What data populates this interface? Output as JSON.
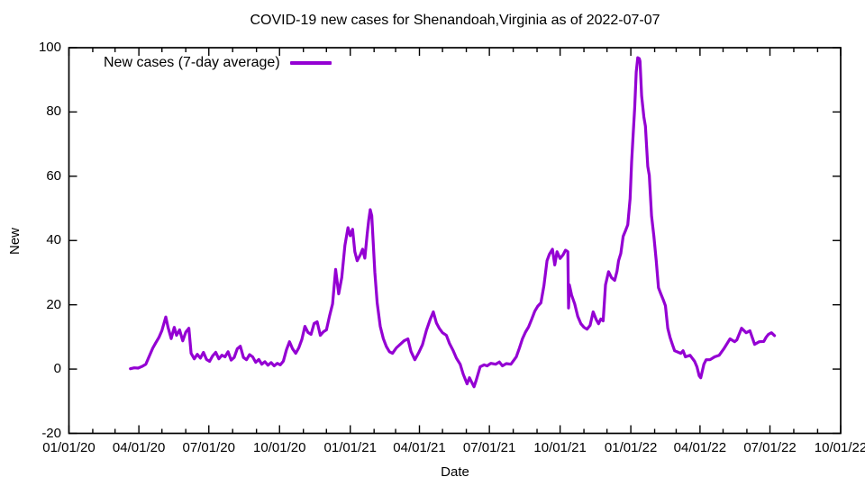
{
  "chart_data": {
    "type": "line",
    "title": "COVID-19 new cases for Shenandoah,Virginia as of 2022-07-07",
    "xlabel": "Date",
    "ylabel": "New",
    "x_ticks": [
      "01/01/20",
      "04/01/20",
      "07/01/20",
      "10/01/20",
      "01/01/21",
      "04/01/21",
      "07/01/21",
      "10/01/21",
      "01/01/22",
      "04/01/22",
      "07/01/22",
      "10/01/22"
    ],
    "x_range": [
      "2020-01-01",
      "2022-10-01"
    ],
    "y_ticks": [
      -20,
      0,
      20,
      40,
      60,
      80,
      100
    ],
    "ylim": [
      -20,
      100
    ],
    "grid": "off",
    "legend": {
      "label": "New cases (7-day average)",
      "color": "#9400d3",
      "position": "top-left"
    },
    "series": [
      {
        "name": "New cases (7-day average)",
        "color": "#9400d3",
        "points": [
          [
            "2020-03-21",
            0.1
          ],
          [
            "2020-03-26",
            0.4
          ],
          [
            "2020-03-31",
            0.3
          ],
          [
            "2020-04-05",
            0.8
          ],
          [
            "2020-04-10",
            1.5
          ],
          [
            "2020-04-15",
            4.3
          ],
          [
            "2020-04-19",
            6.5
          ],
          [
            "2020-04-23",
            8.2
          ],
          [
            "2020-04-27",
            9.8
          ],
          [
            "2020-05-01",
            12.0
          ],
          [
            "2020-05-06",
            16.2
          ],
          [
            "2020-05-09",
            13.0
          ],
          [
            "2020-05-13",
            9.5
          ],
          [
            "2020-05-17",
            13.0
          ],
          [
            "2020-05-20",
            10.5
          ],
          [
            "2020-05-24",
            12.2
          ],
          [
            "2020-05-28",
            8.8
          ],
          [
            "2020-06-01",
            11.5
          ],
          [
            "2020-06-05",
            12.7
          ],
          [
            "2020-06-08",
            4.9
          ],
          [
            "2020-06-12",
            3.2
          ],
          [
            "2020-06-16",
            4.6
          ],
          [
            "2020-06-20",
            3.4
          ],
          [
            "2020-06-24",
            5.2
          ],
          [
            "2020-06-28",
            3.0
          ],
          [
            "2020-07-02",
            2.4
          ],
          [
            "2020-07-06",
            4.1
          ],
          [
            "2020-07-10",
            5.2
          ],
          [
            "2020-07-14",
            3.2
          ],
          [
            "2020-07-18",
            4.3
          ],
          [
            "2020-07-22",
            3.8
          ],
          [
            "2020-07-26",
            5.4
          ],
          [
            "2020-07-30",
            2.8
          ],
          [
            "2020-08-03",
            3.6
          ],
          [
            "2020-08-07",
            6.3
          ],
          [
            "2020-08-11",
            7.1
          ],
          [
            "2020-08-15",
            3.6
          ],
          [
            "2020-08-19",
            2.9
          ],
          [
            "2020-08-23",
            4.5
          ],
          [
            "2020-08-27",
            3.8
          ],
          [
            "2020-08-31",
            2.1
          ],
          [
            "2020-09-04",
            3.0
          ],
          [
            "2020-09-08",
            1.5
          ],
          [
            "2020-09-12",
            2.3
          ],
          [
            "2020-09-16",
            1.2
          ],
          [
            "2020-09-20",
            2.0
          ],
          [
            "2020-09-24",
            1.0
          ],
          [
            "2020-09-28",
            1.8
          ],
          [
            "2020-10-02",
            1.3
          ],
          [
            "2020-10-06",
            2.5
          ],
          [
            "2020-10-10",
            6.0
          ],
          [
            "2020-10-14",
            8.5
          ],
          [
            "2020-10-18",
            6.3
          ],
          [
            "2020-10-22",
            4.9
          ],
          [
            "2020-10-26",
            6.6
          ],
          [
            "2020-10-30",
            9.2
          ],
          [
            "2020-11-03",
            13.3
          ],
          [
            "2020-11-07",
            11.4
          ],
          [
            "2020-11-11",
            10.8
          ],
          [
            "2020-11-15",
            14.2
          ],
          [
            "2020-11-19",
            14.7
          ],
          [
            "2020-11-23",
            10.5
          ],
          [
            "2020-11-27",
            11.6
          ],
          [
            "2020-12-01",
            12.2
          ],
          [
            "2020-12-05",
            16.5
          ],
          [
            "2020-12-09",
            20.3
          ],
          [
            "2020-12-13",
            31.0
          ],
          [
            "2020-12-17",
            23.4
          ],
          [
            "2020-12-21",
            28.5
          ],
          [
            "2020-12-25",
            38.5
          ],
          [
            "2020-12-29",
            44.0
          ],
          [
            "2021-01-01",
            41.5
          ],
          [
            "2021-01-04",
            43.5
          ],
          [
            "2021-01-07",
            36.5
          ],
          [
            "2021-01-10",
            33.7
          ],
          [
            "2021-01-14",
            35.5
          ],
          [
            "2021-01-17",
            37.3
          ],
          [
            "2021-01-20",
            34.5
          ],
          [
            "2021-01-23",
            42.0
          ],
          [
            "2021-01-25",
            46.3
          ],
          [
            "2021-01-27",
            49.6
          ],
          [
            "2021-01-29",
            47.7
          ],
          [
            "2021-02-02",
            30.1
          ],
          [
            "2021-02-05",
            20.6
          ],
          [
            "2021-02-09",
            13.3
          ],
          [
            "2021-02-13",
            9.5
          ],
          [
            "2021-02-17",
            7.0
          ],
          [
            "2021-02-21",
            5.4
          ],
          [
            "2021-02-25",
            4.9
          ],
          [
            "2021-03-02",
            6.6
          ],
          [
            "2021-03-07",
            7.7
          ],
          [
            "2021-03-12",
            8.8
          ],
          [
            "2021-03-17",
            9.4
          ],
          [
            "2021-03-21",
            5.5
          ],
          [
            "2021-03-26",
            2.9
          ],
          [
            "2021-03-31",
            5.1
          ],
          [
            "2021-04-05",
            7.6
          ],
          [
            "2021-04-10",
            12.0
          ],
          [
            "2021-04-15",
            15.5
          ],
          [
            "2021-04-19",
            17.8
          ],
          [
            "2021-04-23",
            14.4
          ],
          [
            "2021-04-27",
            12.6
          ],
          [
            "2021-05-01",
            11.3
          ],
          [
            "2021-05-06",
            10.5
          ],
          [
            "2021-05-10",
            8.0
          ],
          [
            "2021-05-15",
            5.7
          ],
          [
            "2021-05-19",
            3.4
          ],
          [
            "2021-05-24",
            1.5
          ],
          [
            "2021-05-28",
            -1.6
          ],
          [
            "2021-06-02",
            -4.6
          ],
          [
            "2021-06-05",
            -2.7
          ],
          [
            "2021-06-08",
            -4.1
          ],
          [
            "2021-06-11",
            -5.5
          ],
          [
            "2021-06-14",
            -3.4
          ],
          [
            "2021-06-19",
            0.7
          ],
          [
            "2021-06-24",
            1.3
          ],
          [
            "2021-06-28",
            1.0
          ],
          [
            "2021-07-03",
            1.8
          ],
          [
            "2021-07-09",
            1.5
          ],
          [
            "2021-07-14",
            2.2
          ],
          [
            "2021-07-18",
            1.0
          ],
          [
            "2021-07-23",
            1.7
          ],
          [
            "2021-07-29",
            1.5
          ],
          [
            "2021-08-02",
            2.8
          ],
          [
            "2021-08-05",
            3.8
          ],
          [
            "2021-08-09",
            6.5
          ],
          [
            "2021-08-13",
            9.4
          ],
          [
            "2021-08-17",
            11.5
          ],
          [
            "2021-08-21",
            13.1
          ],
          [
            "2021-08-25",
            15.5
          ],
          [
            "2021-08-29",
            18.0
          ],
          [
            "2021-09-02",
            19.6
          ],
          [
            "2021-09-06",
            20.6
          ],
          [
            "2021-09-10",
            26.0
          ],
          [
            "2021-09-14",
            33.7
          ],
          [
            "2021-09-17",
            35.7
          ],
          [
            "2021-09-21",
            37.3
          ],
          [
            "2021-09-24",
            32.4
          ],
          [
            "2021-09-27",
            36.5
          ],
          [
            "2021-10-01",
            34.4
          ],
          [
            "2021-10-05",
            35.6
          ],
          [
            "2021-10-08",
            37.0
          ],
          [
            "2021-10-11",
            36.5
          ],
          [
            "2021-10-12",
            19.0
          ],
          [
            "2021-10-13",
            26.2
          ],
          [
            "2021-10-16",
            23.0
          ],
          [
            "2021-10-20",
            20.3
          ],
          [
            "2021-10-24",
            16.4
          ],
          [
            "2021-10-28",
            14.1
          ],
          [
            "2021-11-01",
            13.0
          ],
          [
            "2021-11-05",
            12.4
          ],
          [
            "2021-11-09",
            13.6
          ],
          [
            "2021-11-13",
            17.8
          ],
          [
            "2021-11-17",
            15.4
          ],
          [
            "2021-11-20",
            14.1
          ],
          [
            "2021-11-23",
            15.6
          ],
          [
            "2021-11-26",
            15.0
          ],
          [
            "2021-11-29",
            26.2
          ],
          [
            "2021-12-03",
            30.3
          ],
          [
            "2021-12-07",
            28.4
          ],
          [
            "2021-12-11",
            27.6
          ],
          [
            "2021-12-14",
            30.5
          ],
          [
            "2021-12-16",
            33.7
          ],
          [
            "2021-12-19",
            36.0
          ],
          [
            "2021-12-22",
            41.3
          ],
          [
            "2021-12-25",
            43.0
          ],
          [
            "2021-12-28",
            44.9
          ],
          [
            "2021-12-31",
            53.0
          ],
          [
            "2022-01-02",
            64.5
          ],
          [
            "2022-01-04",
            73.0
          ],
          [
            "2022-01-06",
            81.3
          ],
          [
            "2022-01-08",
            92.4
          ],
          [
            "2022-01-10",
            96.9
          ],
          [
            "2022-01-12",
            96.6
          ],
          [
            "2022-01-13",
            95.8
          ],
          [
            "2022-01-15",
            85.0
          ],
          [
            "2022-01-18",
            78.4
          ],
          [
            "2022-01-20",
            75.6
          ],
          [
            "2022-01-23",
            63.1
          ],
          [
            "2022-01-25",
            60.3
          ],
          [
            "2022-01-28",
            47.7
          ],
          [
            "2022-01-31",
            41.3
          ],
          [
            "2022-02-03",
            33.7
          ],
          [
            "2022-02-06",
            25.3
          ],
          [
            "2022-02-09",
            23.4
          ],
          [
            "2022-02-12",
            21.7
          ],
          [
            "2022-02-15",
            19.7
          ],
          [
            "2022-02-18",
            12.7
          ],
          [
            "2022-02-21",
            9.9
          ],
          [
            "2022-02-24",
            7.7
          ],
          [
            "2022-02-27",
            5.7
          ],
          [
            "2022-03-04",
            5.2
          ],
          [
            "2022-03-07",
            4.9
          ],
          [
            "2022-03-10",
            5.7
          ],
          [
            "2022-03-13",
            3.8
          ],
          [
            "2022-03-19",
            4.3
          ],
          [
            "2022-03-25",
            2.4
          ],
          [
            "2022-03-28",
            0.7
          ],
          [
            "2022-03-31",
            -2.1
          ],
          [
            "2022-04-02",
            -2.7
          ],
          [
            "2022-04-06",
            1.5
          ],
          [
            "2022-04-09",
            2.9
          ],
          [
            "2022-04-14",
            2.9
          ],
          [
            "2022-04-20",
            3.8
          ],
          [
            "2022-04-26",
            4.3
          ],
          [
            "2022-05-02",
            6.3
          ],
          [
            "2022-05-10",
            9.4
          ],
          [
            "2022-05-16",
            8.5
          ],
          [
            "2022-05-19",
            9.1
          ],
          [
            "2022-05-25",
            12.7
          ],
          [
            "2022-05-31",
            11.3
          ],
          [
            "2022-06-05",
            11.9
          ],
          [
            "2022-06-11",
            7.7
          ],
          [
            "2022-06-17",
            8.5
          ],
          [
            "2022-06-23",
            8.6
          ],
          [
            "2022-06-26",
            9.9
          ],
          [
            "2022-06-29",
            10.8
          ],
          [
            "2022-07-03",
            11.3
          ],
          [
            "2022-07-07",
            10.4
          ]
        ]
      }
    ]
  }
}
